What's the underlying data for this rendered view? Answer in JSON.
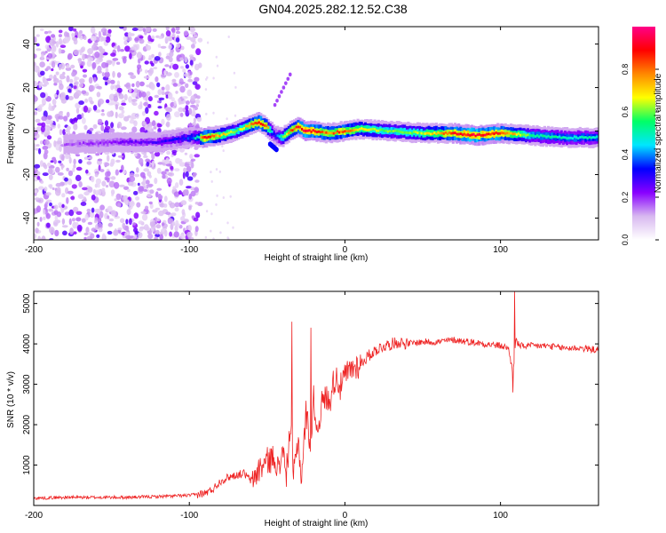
{
  "title": "GN04.2025.282.12.52.C38",
  "chart_data": [
    {
      "type": "heatmap",
      "xlabel": "Height of straight line (km)",
      "ylabel": "Frequency (Hz)",
      "xlim": [
        -200,
        163
      ],
      "ylim": [
        -50,
        48
      ],
      "xticks": [
        -200,
        -100,
        0,
        100
      ],
      "yticks": [
        -40,
        -20,
        0,
        20,
        40
      ],
      "colorbar": {
        "label": "Normalized spectral amplitude",
        "range": [
          0,
          1
        ],
        "ticks": [
          0.0,
          0.2,
          0.4,
          0.6,
          0.8
        ],
        "tick_labels": [
          "0.0",
          "0.2",
          "0.4",
          "0.6",
          "0.8"
        ],
        "colors": [
          "#ffffff",
          "#d8b8f0",
          "#8800ff",
          "#0000ff",
          "#00e6ff",
          "#00ff66",
          "#ffff00",
          "#ff8800",
          "#ff0000",
          "#ff0088"
        ]
      },
      "ridge": {
        "x": [
          -180,
          -160,
          -140,
          -120,
          -100,
          -90,
          -80,
          -70,
          -60,
          -55,
          -50,
          -45,
          -40,
          -35,
          -30,
          -25,
          -20,
          -10,
          0,
          10,
          30,
          50,
          70,
          85,
          100,
          120,
          140,
          163
        ],
        "freq": [
          -6,
          -5.5,
          -5,
          -5,
          -3,
          -3,
          -2,
          0,
          3,
          4,
          2,
          -2,
          -3,
          0,
          2,
          0,
          0,
          -1,
          0,
          1,
          0,
          -1,
          -1,
          -2,
          -1,
          -2,
          -3,
          -3
        ],
        "amplitude": [
          0.25,
          0.3,
          0.35,
          0.4,
          0.55,
          0.9,
          0.75,
          0.6,
          0.8,
          0.9,
          0.8,
          0.3,
          0.6,
          0.8,
          0.9,
          0.95,
          0.9,
          0.8,
          0.85,
          0.7,
          0.6,
          0.65,
          0.9,
          0.95,
          0.9,
          0.55,
          0.5,
          0.5
        ]
      },
      "noise_region_x": [
        -200,
        -93
      ]
    },
    {
      "type": "line",
      "xlabel": "Height of straight line (km)",
      "ylabel": "SNR (10 * v/v)",
      "xlim": [
        -200,
        163
      ],
      "ylim": [
        0,
        5300
      ],
      "xticks": [
        -200,
        -100,
        0,
        100
      ],
      "yticks": [
        1000,
        2000,
        3000,
        4000,
        5000
      ],
      "color": "#ee2222",
      "series": [
        {
          "name": "SNR",
          "x": [
            -200,
            -180,
            -160,
            -140,
            -120,
            -100,
            -90,
            -85,
            -80,
            -75,
            -70,
            -65,
            -60,
            -55,
            -50,
            -45,
            -42,
            -40,
            -38,
            -35,
            -33,
            -30,
            -28,
            -25,
            -22,
            -20,
            -18,
            -15,
            -12,
            -10,
            -8,
            -5,
            -3,
            0,
            5,
            10,
            15,
            20,
            25,
            30,
            35,
            40,
            50,
            60,
            70,
            80,
            90,
            100,
            105,
            108,
            110,
            112,
            120,
            130,
            140,
            150,
            163
          ],
          "y": [
            180,
            200,
            200,
            200,
            220,
            250,
            300,
            400,
            600,
            700,
            750,
            800,
            600,
            900,
            1100,
            1200,
            800,
            1600,
            600,
            2000,
            700,
            1700,
            600,
            2300,
            1500,
            2700,
            1800,
            2500,
            2700,
            2500,
            3000,
            3200,
            2900,
            3200,
            3400,
            3500,
            3700,
            3850,
            3950,
            4000,
            4050,
            4000,
            4050,
            4050,
            4100,
            4050,
            4000,
            3950,
            3900,
            3300,
            4100,
            3950,
            3950,
            3950,
            3900,
            3900,
            3850
          ],
          "peaks": [
            {
              "x": -34,
              "y": 4550
            },
            {
              "x": -22,
              "y": 4400
            },
            {
              "x": 109,
              "y": 5300
            },
            {
              "x": 108,
              "y": 2800
            }
          ]
        }
      ]
    }
  ]
}
